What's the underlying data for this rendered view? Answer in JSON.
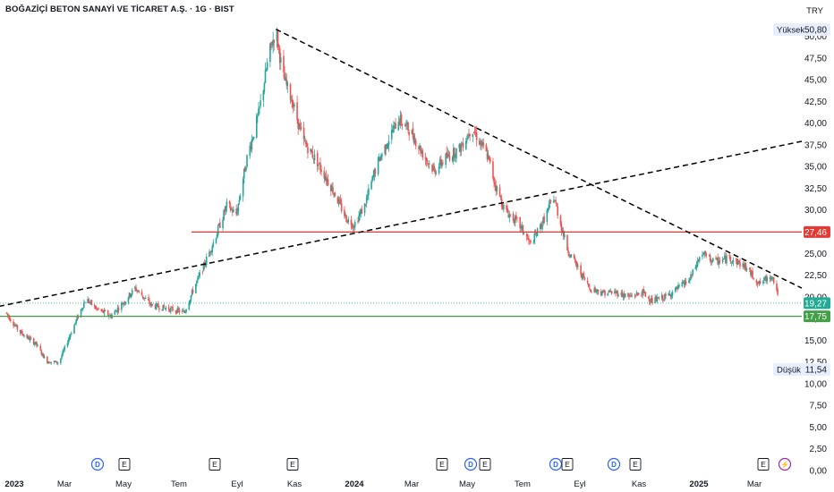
{
  "header": {
    "title": "BOĞAZİÇİ BETON SANAYİ VE TİCARET A.Ş. · 1G · BIST",
    "currency": "TRY"
  },
  "colors": {
    "up": "#26a69a",
    "down": "#ef5350",
    "resistance": "#e53935",
    "support": "#43a047",
    "trend": "#000000",
    "price_badge": "#22ab94",
    "dividend": "#2962ff",
    "split": "#9c27b0"
  },
  "badges": {
    "high_label": "Yüksek",
    "high_value": "50,80",
    "low_label": "Düşük",
    "low_value": "11,54",
    "last_price": "19,27",
    "resistance_value": "27,46",
    "support_value": "17,75"
  },
  "chart_data": {
    "type": "candlestick",
    "title": "BOĞAZİÇİ BETON SANAYİ VE TİCARET A.Ş. · 1G · BIST",
    "ylim": [
      0,
      51
    ],
    "y_ticks": [
      "0,00",
      "2,50",
      "5,00",
      "7,50",
      "10,00",
      "12,50",
      "15,00",
      "17,50",
      "20,00",
      "22,50",
      "25,00",
      "27,50",
      "30,00",
      "32,50",
      "35,00",
      "37,50",
      "40,00",
      "42,50",
      "45,00",
      "47,50",
      "50,00"
    ],
    "x_ticks": [
      {
        "label": "2023",
        "bold": true
      },
      {
        "label": "Mar",
        "bold": false
      },
      {
        "label": "May",
        "bold": false
      },
      {
        "label": "Tem",
        "bold": false
      },
      {
        "label": "Eyl",
        "bold": false
      },
      {
        "label": "Kas",
        "bold": false
      },
      {
        "label": "2024",
        "bold": true
      },
      {
        "label": "Mar",
        "bold": false
      },
      {
        "label": "May",
        "bold": false
      },
      {
        "label": "Tem",
        "bold": false
      },
      {
        "label": "Eyl",
        "bold": false
      },
      {
        "label": "Kas",
        "bold": false
      },
      {
        "label": "2025",
        "bold": true
      },
      {
        "label": "Mar",
        "bold": false
      }
    ],
    "price_path": [
      [
        "2023-01-01",
        18.2
      ],
      [
        "2023-01-15",
        16.0
      ],
      [
        "2023-02-01",
        14.6
      ],
      [
        "2023-02-12",
        12.6
      ],
      [
        "2023-02-25",
        12.4
      ],
      [
        "2023-03-10",
        16.0
      ],
      [
        "2023-03-25",
        19.8
      ],
      [
        "2023-04-05",
        18.6
      ],
      [
        "2023-04-20",
        17.8
      ],
      [
        "2023-05-05",
        19.6
      ],
      [
        "2023-05-15",
        21.0
      ],
      [
        "2023-06-01",
        19.0
      ],
      [
        "2023-06-20",
        18.6
      ],
      [
        "2023-07-05",
        18.2
      ],
      [
        "2023-07-15",
        21.0
      ],
      [
        "2023-07-25",
        23.5
      ],
      [
        "2023-08-05",
        26.5
      ],
      [
        "2023-08-18",
        30.5
      ],
      [
        "2023-08-28",
        29.5
      ],
      [
        "2023-09-08",
        36.0
      ],
      [
        "2023-09-20",
        41.0
      ],
      [
        "2023-10-01",
        48.0
      ],
      [
        "2023-10-08",
        50.8
      ],
      [
        "2023-10-15",
        45.5
      ],
      [
        "2023-10-25",
        42.5
      ],
      [
        "2023-11-05",
        38.0
      ],
      [
        "2023-11-20",
        35.5
      ],
      [
        "2023-12-05",
        32.5
      ],
      [
        "2023-12-20",
        29.0
      ],
      [
        "2023-12-28",
        28.3
      ],
      [
        "2024-01-08",
        30.5
      ],
      [
        "2024-01-20",
        35.0
      ],
      [
        "2024-02-01",
        38.0
      ],
      [
        "2024-02-12",
        40.5
      ],
      [
        "2024-02-25",
        39.0
      ],
      [
        "2024-03-08",
        36.5
      ],
      [
        "2024-03-20",
        34.5
      ],
      [
        "2024-04-01",
        36.0
      ],
      [
        "2024-04-15",
        37.0
      ],
      [
        "2024-04-28",
        39.5
      ],
      [
        "2024-05-08",
        37.5
      ],
      [
        "2024-05-15",
        36.0
      ],
      [
        "2024-05-22",
        33.0
      ],
      [
        "2024-06-01",
        30.0
      ],
      [
        "2024-06-15",
        28.5
      ],
      [
        "2024-06-28",
        26.0
      ],
      [
        "2024-07-10",
        28.5
      ],
      [
        "2024-07-22",
        31.5
      ],
      [
        "2024-07-30",
        28.0
      ],
      [
        "2024-08-05",
        25.5
      ],
      [
        "2024-08-15",
        23.5
      ],
      [
        "2024-08-28",
        21.0
      ],
      [
        "2024-09-10",
        20.5
      ],
      [
        "2024-09-25",
        20.5
      ],
      [
        "2024-10-08",
        20.0
      ],
      [
        "2024-10-22",
        20.5
      ],
      [
        "2024-11-01",
        19.5
      ],
      [
        "2024-11-15",
        20.0
      ],
      [
        "2024-11-28",
        21.0
      ],
      [
        "2024-12-10",
        22.0
      ],
      [
        "2024-12-22",
        25.0
      ],
      [
        "2025-01-05",
        24.0
      ],
      [
        "2025-01-20",
        24.5
      ],
      [
        "2025-02-05",
        23.5
      ],
      [
        "2025-02-20",
        21.5
      ],
      [
        "2025-03-05",
        22.5
      ],
      [
        "2025-03-15",
        19.0
      ],
      [
        "2025-03-22",
        18.5
      ],
      [
        "2025-03-28",
        19.27
      ]
    ],
    "lines": {
      "resistance": 27.46,
      "support": 17.75,
      "last_price": 19.27,
      "descending_trend": [
        [
          "2023-10-08",
          50.8
        ],
        [
          "2025-04-05",
          21.0
        ]
      ],
      "ascending_trend": [
        [
          "2022-12-25",
          18.9
        ],
        [
          "2025-04-05",
          37.9
        ]
      ]
    },
    "events": [
      {
        "type": "D",
        "label": "D"
      },
      {
        "type": "E",
        "label": "E"
      },
      {
        "type": "E",
        "label": "E"
      },
      {
        "type": "E",
        "label": "E"
      },
      {
        "type": "E",
        "label": "E"
      },
      {
        "type": "D",
        "label": "D"
      },
      {
        "type": "E",
        "label": "E"
      },
      {
        "type": "D",
        "label": "D"
      },
      {
        "type": "E",
        "label": "E"
      },
      {
        "type": "D",
        "label": "D"
      },
      {
        "type": "E",
        "label": "E"
      },
      {
        "type": "E",
        "label": "E"
      },
      {
        "type": "S",
        "label": "⚡"
      }
    ]
  }
}
